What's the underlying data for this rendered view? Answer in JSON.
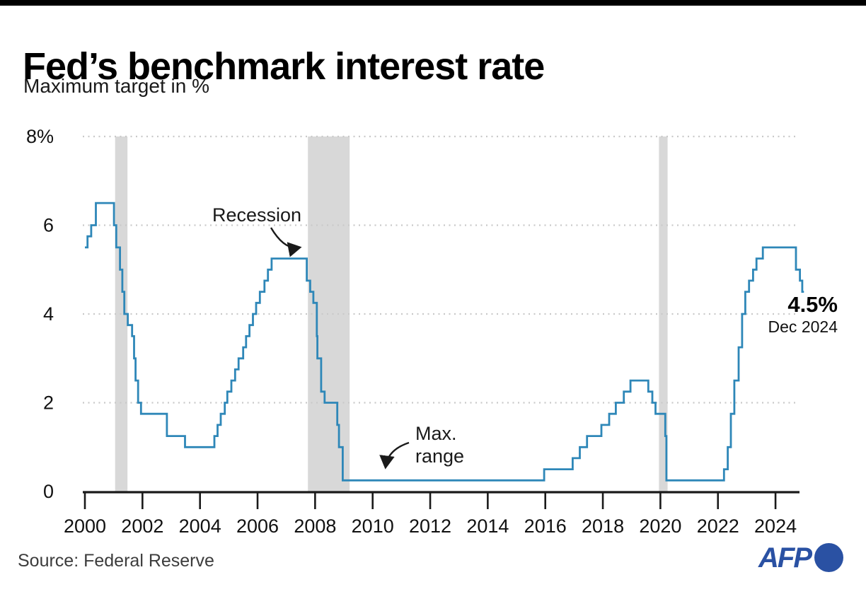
{
  "header": {
    "title": "Fed’s benchmark interest rate",
    "subtitle": "Maximum target in %"
  },
  "annotations": {
    "recession_label": "Recession",
    "max_range_line1": "Max.",
    "max_range_line2": "range",
    "latest_value": "4.5%",
    "latest_date": "Dec 2024"
  },
  "source": "Source: Federal Reserve",
  "logo": {
    "text": "AFP"
  },
  "colors": {
    "line": "#2e87b8",
    "band": "#d8d8d8",
    "grid": "#c9c9c9",
    "axis": "#1a1a1a",
    "logo_blue": "#2a51a3"
  },
  "chart_data": {
    "type": "line",
    "title": "Fed’s benchmark interest rate",
    "xlabel": "",
    "ylabel": "Maximum target in %",
    "ylim": [
      0,
      8
    ],
    "xlim": [
      2000,
      2025
    ],
    "grid": "horizontal dotted",
    "legend": "none",
    "yticks": [
      {
        "value": 8,
        "label": "8%"
      },
      {
        "value": 6,
        "label": "6"
      },
      {
        "value": 4,
        "label": "4"
      },
      {
        "value": 2,
        "label": "2"
      },
      {
        "value": 0,
        "label": "0"
      }
    ],
    "xticks": [
      {
        "value": 2000,
        "label": "2000"
      },
      {
        "value": 2002,
        "label": "2002"
      },
      {
        "value": 2004,
        "label": "2004"
      },
      {
        "value": 2006,
        "label": "2006"
      },
      {
        "value": 2008,
        "label": "2008"
      },
      {
        "value": 2010,
        "label": "2010"
      },
      {
        "value": 2012,
        "label": "2012"
      },
      {
        "value": 2014,
        "label": "2014"
      },
      {
        "value": 2016,
        "label": "2016"
      },
      {
        "value": 2018,
        "label": "2018"
      },
      {
        "value": 2020,
        "label": "2020"
      },
      {
        "value": 2022,
        "label": "2022"
      },
      {
        "value": 2024,
        "label": "2024"
      }
    ],
    "recession_bands": [
      {
        "start": 2001.05,
        "end": 2001.48
      },
      {
        "start": 2007.75,
        "end": 2009.2
      },
      {
        "start": 2019.95,
        "end": 2020.25
      }
    ],
    "series": [
      {
        "name": "Maximum target rate",
        "step": true,
        "end_x": 2024.99,
        "points": [
          [
            2000.0,
            5.5
          ],
          [
            2000.09,
            5.75
          ],
          [
            2000.22,
            6.0
          ],
          [
            2000.38,
            6.5
          ],
          [
            2001.01,
            6.0
          ],
          [
            2001.09,
            5.5
          ],
          [
            2001.22,
            5.0
          ],
          [
            2001.3,
            4.5
          ],
          [
            2001.37,
            4.0
          ],
          [
            2001.49,
            3.75
          ],
          [
            2001.64,
            3.5
          ],
          [
            2001.71,
            3.0
          ],
          [
            2001.76,
            2.5
          ],
          [
            2001.85,
            2.0
          ],
          [
            2001.95,
            1.75
          ],
          [
            2002.85,
            1.25
          ],
          [
            2003.48,
            1.0
          ],
          [
            2004.5,
            1.25
          ],
          [
            2004.61,
            1.5
          ],
          [
            2004.72,
            1.75
          ],
          [
            2004.86,
            2.0
          ],
          [
            2004.95,
            2.25
          ],
          [
            2005.09,
            2.5
          ],
          [
            2005.22,
            2.75
          ],
          [
            2005.34,
            3.0
          ],
          [
            2005.5,
            3.25
          ],
          [
            2005.6,
            3.5
          ],
          [
            2005.72,
            3.75
          ],
          [
            2005.84,
            4.0
          ],
          [
            2005.95,
            4.25
          ],
          [
            2006.08,
            4.5
          ],
          [
            2006.24,
            4.75
          ],
          [
            2006.36,
            5.0
          ],
          [
            2006.49,
            5.25
          ],
          [
            2007.71,
            4.75
          ],
          [
            2007.83,
            4.5
          ],
          [
            2007.94,
            4.25
          ],
          [
            2008.06,
            3.5
          ],
          [
            2008.08,
            3.0
          ],
          [
            2008.21,
            2.25
          ],
          [
            2008.33,
            2.0
          ],
          [
            2008.77,
            1.5
          ],
          [
            2008.83,
            1.0
          ],
          [
            2008.96,
            0.25
          ],
          [
            2015.96,
            0.5
          ],
          [
            2016.95,
            0.75
          ],
          [
            2017.2,
            1.0
          ],
          [
            2017.45,
            1.25
          ],
          [
            2017.95,
            1.5
          ],
          [
            2018.22,
            1.75
          ],
          [
            2018.45,
            2.0
          ],
          [
            2018.73,
            2.25
          ],
          [
            2018.96,
            2.5
          ],
          [
            2019.58,
            2.25
          ],
          [
            2019.72,
            2.0
          ],
          [
            2019.83,
            1.75
          ],
          [
            2020.17,
            1.25
          ],
          [
            2020.21,
            0.25
          ],
          [
            2022.21,
            0.5
          ],
          [
            2022.34,
            1.0
          ],
          [
            2022.45,
            1.75
          ],
          [
            2022.57,
            2.5
          ],
          [
            2022.72,
            3.25
          ],
          [
            2022.84,
            4.0
          ],
          [
            2022.95,
            4.5
          ],
          [
            2023.08,
            4.75
          ],
          [
            2023.22,
            5.0
          ],
          [
            2023.34,
            5.25
          ],
          [
            2023.56,
            5.5
          ],
          [
            2024.71,
            5.0
          ],
          [
            2024.85,
            4.75
          ],
          [
            2024.93,
            4.5
          ]
        ]
      }
    ]
  }
}
